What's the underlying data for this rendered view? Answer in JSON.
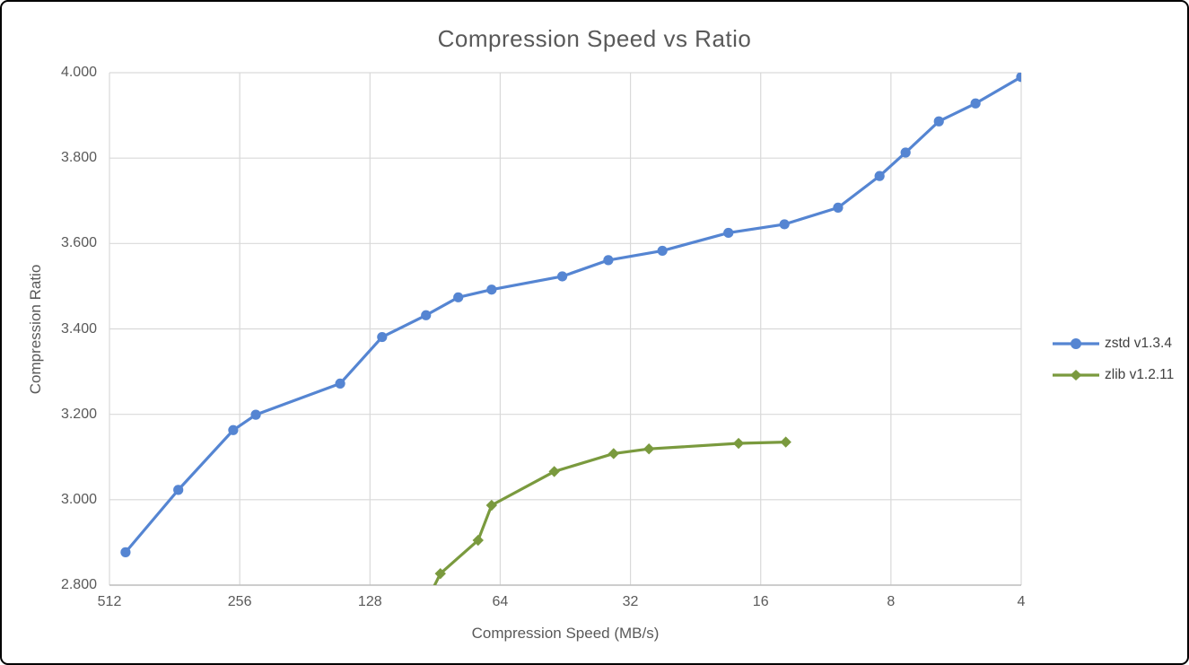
{
  "colors": {
    "background": "#ffffff",
    "border": "#000000",
    "gridline": "#d9d9d9",
    "axis_line": "#bfbfbf",
    "title_text": "#595959",
    "tick_text": "#595959",
    "axis_title_text": "#595959",
    "legend_text": "#404040"
  },
  "chart_data": {
    "type": "line",
    "title": "Compression Speed vs Ratio",
    "xlabel": "Compression Speed (MB/s)",
    "ylabel": "Compression Ratio",
    "x_scale": "log2-reversed",
    "x_ticks": [
      512,
      256,
      128,
      64,
      32,
      16,
      8,
      4
    ],
    "y_ticks": [
      "4.000",
      "3.800",
      "3.600",
      "3.400",
      "3.200",
      "3.000",
      "2.800"
    ],
    "ylim": [
      2.8,
      4.0
    ],
    "grid": true,
    "legend_position": "right",
    "series": [
      {
        "name": "zstd v1.3.4",
        "color": "#5585d2",
        "marker": "circle",
        "points": [
          [
            470,
            2.877
          ],
          [
            355,
            3.023
          ],
          [
            265,
            3.163
          ],
          [
            235,
            3.199
          ],
          [
            150,
            3.272
          ],
          [
            120,
            3.381
          ],
          [
            95,
            3.432
          ],
          [
            80,
            3.474
          ],
          [
            67,
            3.492
          ],
          [
            46,
            3.523
          ],
          [
            36,
            3.561
          ],
          [
            27,
            3.583
          ],
          [
            19,
            3.625
          ],
          [
            14.1,
            3.645
          ],
          [
            10.6,
            3.684
          ],
          [
            8.5,
            3.758
          ],
          [
            7.4,
            3.813
          ],
          [
            6.2,
            3.886
          ],
          [
            5.1,
            3.928
          ],
          [
            4.0,
            3.99
          ]
        ]
      },
      {
        "name": "zlib v1.2.11",
        "color": "#7a9a3e",
        "marker": "diamond",
        "points": [
          [
            97,
            2.74
          ],
          [
            88,
            2.827
          ],
          [
            72,
            2.905
          ],
          [
            67,
            2.987
          ],
          [
            48,
            3.066
          ],
          [
            35,
            3.108
          ],
          [
            29,
            3.119
          ],
          [
            18,
            3.132
          ],
          [
            14,
            3.135
          ]
        ]
      }
    ]
  }
}
